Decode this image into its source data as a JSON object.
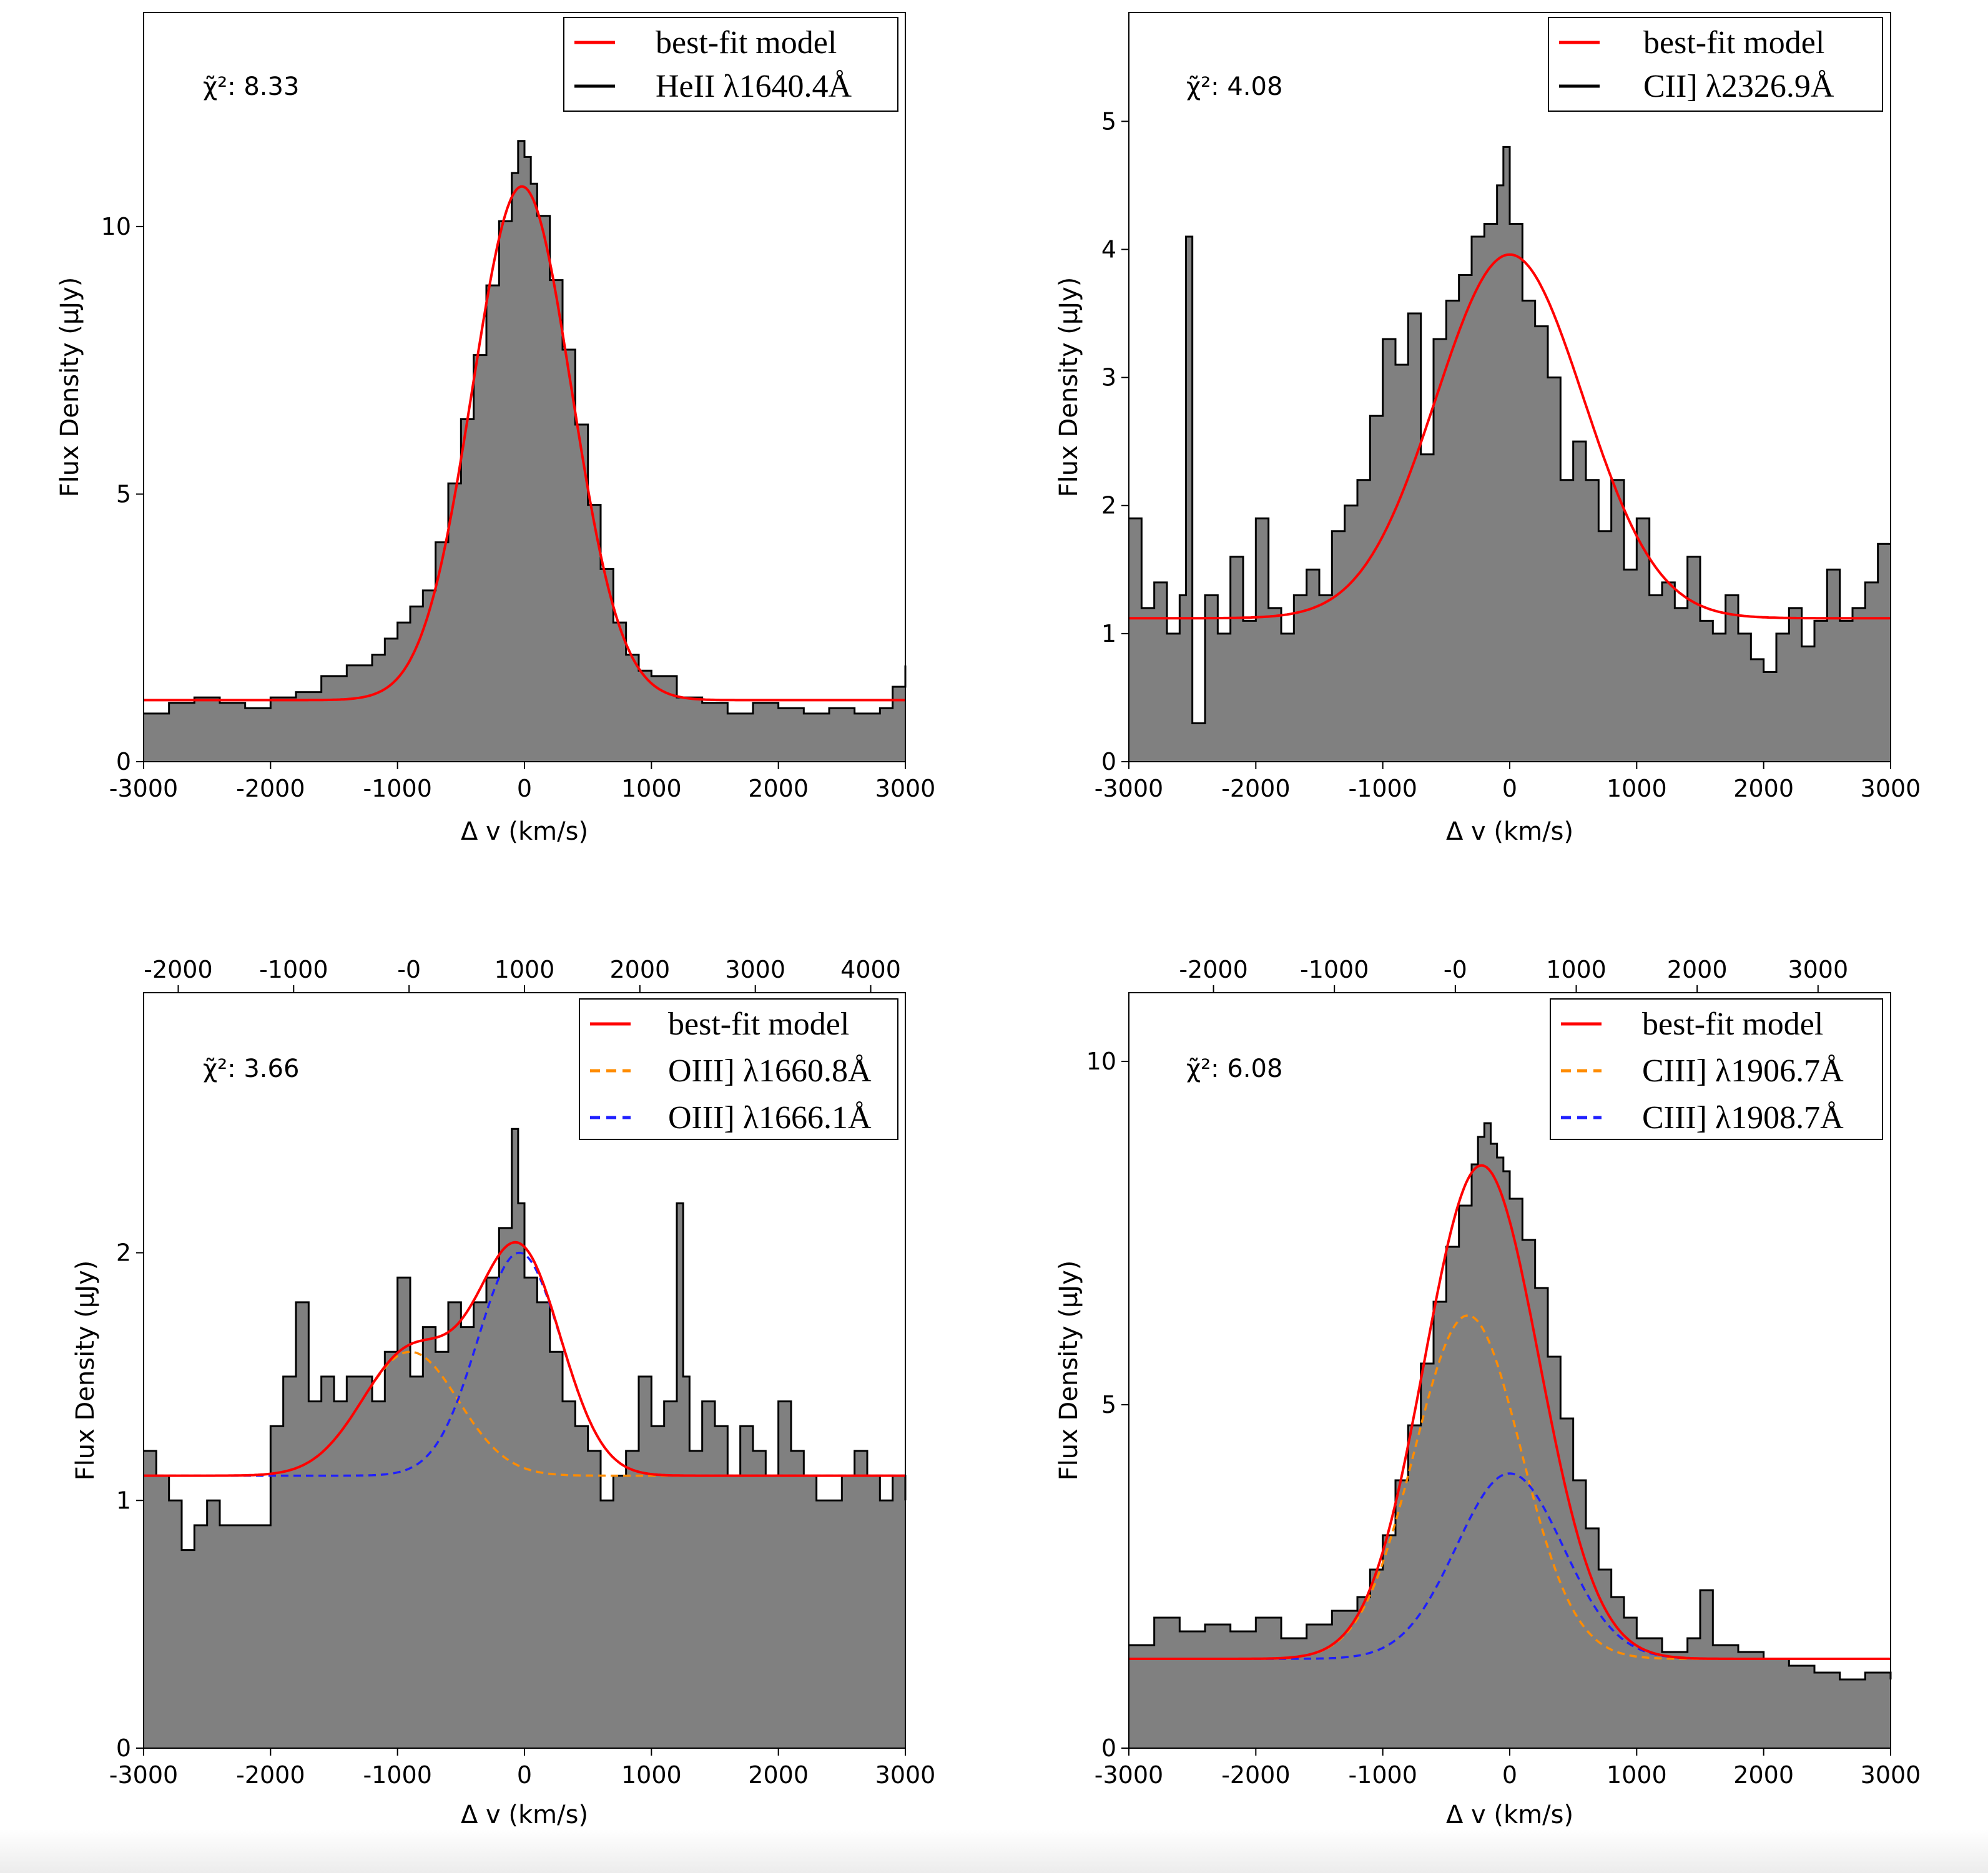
{
  "colors": {
    "fill": "#808080",
    "outline": "#000000",
    "model": "#ff0000",
    "comp1": "#ff8c00",
    "comp2": "#1f1fff"
  },
  "chart_data": [
    {
      "type": "step-histogram",
      "panel": "top-left",
      "xlabel": "Δ v (km/s)",
      "ylabel": "Flux Density (μJy)",
      "xlim": [
        -3000,
        3000
      ],
      "ylim": [
        0,
        14
      ],
      "xticks": [
        -3000,
        -2000,
        -1000,
        0,
        1000,
        2000,
        3000
      ],
      "xtick_labels": [
        "-3000",
        "-2000",
        "-1000",
        "0",
        "1000",
        "2000",
        "3000"
      ],
      "yticks": [
        0,
        5,
        10
      ],
      "ytick_labels": [
        "0",
        "5",
        "10"
      ],
      "chi2_label": "χ̃²: 8.33",
      "legend": [
        "best-fit model",
        "HeII λ1640.4Å"
      ],
      "legend_position": "top-right",
      "spectrum": {
        "x": [
          -3000,
          -2800,
          -2600,
          -2400,
          -2200,
          -2000,
          -1800,
          -1600,
          -1400,
          -1200,
          -1100,
          -1000,
          -900,
          -800,
          -700,
          -600,
          -500,
          -400,
          -300,
          -200,
          -100,
          -50,
          0,
          50,
          100,
          200,
          300,
          400,
          500,
          600,
          700,
          800,
          900,
          1000,
          1200,
          1400,
          1600,
          1800,
          2000,
          2200,
          2400,
          2600,
          2800,
          2900,
          3000
        ],
        "y": [
          0.9,
          1.1,
          1.2,
          1.1,
          1.0,
          1.2,
          1.3,
          1.6,
          1.8,
          2.0,
          2.3,
          2.6,
          2.9,
          3.2,
          4.1,
          5.2,
          6.4,
          7.6,
          8.9,
          10.1,
          11.0,
          11.6,
          11.3,
          10.8,
          10.2,
          9.0,
          7.7,
          6.3,
          4.8,
          3.6,
          2.6,
          2.0,
          1.7,
          1.6,
          1.2,
          1.1,
          0.9,
          1.1,
          1.0,
          0.9,
          1.0,
          0.9,
          1.0,
          1.4,
          1.8
        ]
      },
      "model": {
        "type": "gaussian",
        "continuum": 1.15,
        "amplitude": 9.6,
        "center": -20,
        "sigma": 390
      }
    },
    {
      "type": "step-histogram",
      "panel": "top-right",
      "xlabel": "Δ v (km/s)",
      "ylabel": "Flux Density (μJy)",
      "xlim": [
        -3000,
        3000
      ],
      "ylim": [
        0,
        5.85
      ],
      "xticks": [
        -3000,
        -2000,
        -1000,
        0,
        1000,
        2000,
        3000
      ],
      "xtick_labels": [
        "-3000",
        "-2000",
        "-1000",
        "0",
        "1000",
        "2000",
        "3000"
      ],
      "yticks": [
        0,
        1,
        2,
        3,
        4,
        5
      ],
      "ytick_labels": [
        "0",
        "1",
        "2",
        "3",
        "4",
        "5"
      ],
      "chi2_label": "χ̃²: 4.08",
      "legend": [
        "best-fit model",
        "CII] λ2326.9Å"
      ],
      "legend_position": "top-right",
      "spectrum": {
        "x": [
          -3000,
          -2900,
          -2800,
          -2700,
          -2600,
          -2550,
          -2500,
          -2400,
          -2300,
          -2200,
          -2100,
          -2000,
          -1900,
          -1800,
          -1700,
          -1600,
          -1500,
          -1400,
          -1300,
          -1200,
          -1100,
          -1000,
          -900,
          -800,
          -700,
          -600,
          -500,
          -400,
          -300,
          -200,
          -100,
          -50,
          0,
          100,
          200,
          300,
          400,
          500,
          600,
          700,
          800,
          900,
          1000,
          1100,
          1200,
          1300,
          1400,
          1500,
          1600,
          1700,
          1800,
          1900,
          2000,
          2100,
          2200,
          2300,
          2400,
          2500,
          2600,
          2700,
          2800,
          2900,
          3000
        ],
        "y": [
          1.9,
          1.2,
          1.4,
          1.0,
          1.3,
          4.1,
          0.3,
          1.3,
          1.0,
          1.6,
          1.1,
          1.9,
          1.2,
          1.0,
          1.3,
          1.5,
          1.3,
          1.8,
          2.0,
          2.2,
          2.7,
          3.3,
          3.1,
          3.5,
          2.4,
          3.3,
          3.6,
          3.8,
          4.1,
          4.2,
          4.5,
          4.8,
          4.2,
          3.6,
          3.4,
          3.0,
          2.2,
          2.5,
          2.2,
          1.8,
          2.2,
          1.5,
          1.9,
          1.3,
          1.4,
          1.2,
          1.6,
          1.1,
          1.0,
          1.3,
          1.0,
          0.8,
          0.7,
          1.0,
          1.2,
          0.9,
          1.1,
          1.5,
          1.1,
          1.2,
          1.4,
          1.7,
          1.7
        ]
      },
      "model": {
        "type": "gaussian",
        "continuum": 1.12,
        "amplitude": 2.84,
        "center": 0,
        "sigma": 580
      }
    },
    {
      "type": "step-histogram",
      "panel": "bottom-left",
      "xlabel": "Δ v (km/s)",
      "ylabel": "Flux Density (μJy)",
      "xlim": [
        -3000,
        3000
      ],
      "ylim": [
        0,
        3.05
      ],
      "xticks": [
        -3000,
        -2000,
        -1000,
        0,
        1000,
        2000,
        3000
      ],
      "xtick_labels": [
        "-3000",
        "-2000",
        "-1000",
        "0",
        "1000",
        "2000",
        "3000"
      ],
      "yticks": [
        0,
        1,
        2
      ],
      "ytick_labels": [
        "0",
        "1",
        "2"
      ],
      "top_xticks": [
        -2000,
        -1000,
        0,
        1000,
        2000,
        3000,
        4000
      ],
      "top_xtick_labels": [
        "-2000",
        "-1000",
        "-0",
        "1000",
        "2000",
        "3000",
        "4000"
      ],
      "top_xlim": [
        -2300,
        4300
      ],
      "chi2_label": "χ̃²: 3.66",
      "legend": [
        "best-fit model",
        "OIII] λ1660.8Å",
        "OIII] λ1666.1Å"
      ],
      "legend_position": "top-right",
      "spectrum": {
        "x": [
          -3000,
          -2900,
          -2800,
          -2700,
          -2600,
          -2500,
          -2400,
          -2300,
          -2200,
          -2100,
          -2000,
          -1900,
          -1800,
          -1700,
          -1600,
          -1500,
          -1400,
          -1300,
          -1200,
          -1100,
          -1000,
          -900,
          -800,
          -700,
          -600,
          -500,
          -400,
          -300,
          -200,
          -100,
          -50,
          0,
          100,
          200,
          300,
          400,
          500,
          600,
          700,
          800,
          900,
          1000,
          1100,
          1200,
          1250,
          1300,
          1400,
          1500,
          1600,
          1700,
          1800,
          1900,
          2000,
          2100,
          2200,
          2300,
          2400,
          2500,
          2600,
          2700,
          2800,
          2900,
          3000
        ],
        "y": [
          1.2,
          1.1,
          1.0,
          0.8,
          0.9,
          1.0,
          0.9,
          0.9,
          0.9,
          0.9,
          1.3,
          1.5,
          1.8,
          1.4,
          1.5,
          1.4,
          1.5,
          1.5,
          1.4,
          1.6,
          1.9,
          1.5,
          1.7,
          1.6,
          1.8,
          1.7,
          1.8,
          1.9,
          2.1,
          2.5,
          2.2,
          1.9,
          1.8,
          1.6,
          1.4,
          1.3,
          1.2,
          1.0,
          1.1,
          1.2,
          1.5,
          1.3,
          1.4,
          2.2,
          1.5,
          1.2,
          1.4,
          1.3,
          1.1,
          1.3,
          1.2,
          1.1,
          1.4,
          1.2,
          1.1,
          1.0,
          1.0,
          1.1,
          1.2,
          1.1,
          1.0,
          1.1,
          1.0
        ]
      },
      "model": {
        "type": "double-gaussian",
        "continuum": 1.1,
        "components": [
          {
            "amplitude": 0.5,
            "center": -900,
            "sigma": 380
          },
          {
            "amplitude": 0.9,
            "center": -40,
            "sigma": 330
          }
        ]
      }
    },
    {
      "type": "step-histogram",
      "panel": "bottom-right",
      "xlabel": "Δ v (km/s)",
      "ylabel": "Flux Density (μJy)",
      "xlim": [
        -3000,
        3000
      ],
      "ylim": [
        0,
        11.0
      ],
      "xticks": [
        -3000,
        -2000,
        -1000,
        0,
        1000,
        2000,
        3000
      ],
      "xtick_labels": [
        "-3000",
        "-2000",
        "-1000",
        "0",
        "1000",
        "2000",
        "3000"
      ],
      "yticks": [
        0,
        5,
        10
      ],
      "ytick_labels": [
        "0",
        "5",
        "10"
      ],
      "top_xticks": [
        -2000,
        -1000,
        0,
        1000,
        2000,
        3000
      ],
      "top_xtick_labels": [
        "-2000",
        "-1000",
        "-0",
        "1000",
        "2000",
        "3000"
      ],
      "top_xlim": [
        -2700,
        3600
      ],
      "chi2_label": "χ̃²: 6.08",
      "legend": [
        "best-fit model",
        "CIII] λ1906.7Å",
        "CIII] λ1908.7Å"
      ],
      "legend_position": "top-right",
      "spectrum": {
        "x": [
          -3000,
          -2800,
          -2600,
          -2400,
          -2200,
          -2000,
          -1800,
          -1600,
          -1400,
          -1200,
          -1100,
          -1000,
          -900,
          -800,
          -700,
          -600,
          -500,
          -400,
          -300,
          -250,
          -200,
          -150,
          -100,
          -50,
          0,
          100,
          200,
          300,
          400,
          500,
          600,
          700,
          800,
          900,
          1000,
          1200,
          1400,
          1500,
          1600,
          1800,
          2000,
          2200,
          2400,
          2600,
          2800,
          3000
        ],
        "y": [
          1.5,
          1.9,
          1.7,
          1.8,
          1.7,
          1.9,
          1.6,
          1.8,
          2.0,
          2.2,
          2.6,
          3.1,
          3.9,
          4.7,
          5.6,
          6.5,
          7.3,
          7.9,
          8.5,
          8.9,
          9.1,
          8.8,
          8.6,
          8.4,
          8.0,
          7.4,
          6.7,
          5.7,
          4.8,
          3.9,
          3.2,
          2.6,
          2.2,
          1.9,
          1.6,
          1.4,
          1.6,
          2.3,
          1.5,
          1.4,
          1.3,
          1.2,
          1.1,
          1.0,
          1.1,
          1.0
        ]
      },
      "model": {
        "type": "double-gaussian",
        "continuum": 1.3,
        "components": [
          {
            "amplitude": 5.0,
            "center": -330,
            "sigma": 420
          },
          {
            "amplitude": 2.7,
            "center": 0,
            "sigma": 420
          }
        ]
      }
    }
  ]
}
